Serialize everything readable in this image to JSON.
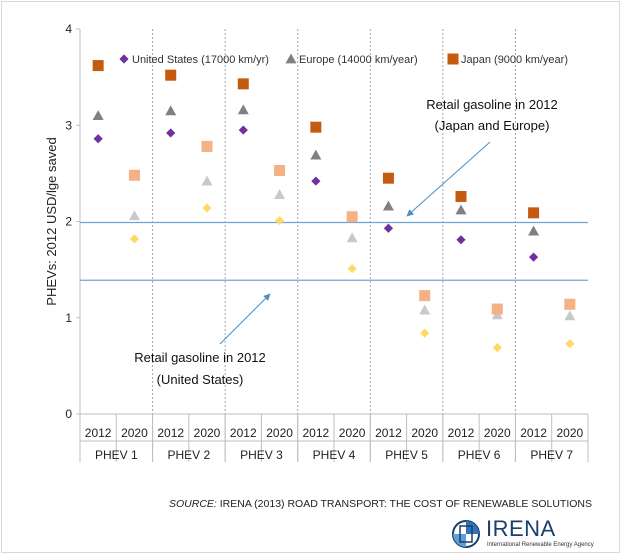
{
  "chart_data": {
    "type": "scatter",
    "ylabel": "PHEVs: 2012 USD/lge saved",
    "ylim": [
      0,
      4
    ],
    "yticks": [
      0,
      1,
      2,
      3,
      4
    ],
    "grid": false,
    "legend_position": "top",
    "groups": [
      "PHEV 1",
      "PHEV 2",
      "PHEV 3",
      "PHEV 4",
      "PHEV 5",
      "PHEV 6",
      "PHEV 7"
    ],
    "years": [
      "2012",
      "2020"
    ],
    "series": [
      {
        "name": "United States (17000 km/yr)",
        "marker": "diamond",
        "colors": {
          "2012": "#7030a0",
          "2020": "#ffd966"
        },
        "values_2012": [
          2.86,
          2.92,
          2.95,
          2.42,
          1.93,
          1.81,
          1.63
        ],
        "values_2020": [
          1.82,
          2.14,
          2.01,
          1.51,
          0.84,
          0.69,
          0.73
        ]
      },
      {
        "name": "Europe (14000 km/year)",
        "marker": "triangle",
        "colors": {
          "2012": "#808080",
          "2020": "#c9c9c9"
        },
        "values_2012": [
          3.1,
          3.15,
          3.16,
          2.69,
          2.16,
          2.12,
          1.9
        ],
        "values_2020": [
          2.06,
          2.42,
          2.28,
          1.83,
          1.08,
          1.03,
          1.02
        ]
      },
      {
        "name": "Japan (9000 km/year)",
        "marker": "square",
        "colors": {
          "2012": "#c55a11",
          "2020": "#f4b183"
        },
        "values_2012": [
          3.62,
          3.52,
          3.43,
          2.98,
          2.45,
          2.26,
          2.09
        ],
        "values_2020": [
          2.48,
          2.78,
          2.53,
          2.05,
          1.23,
          1.09,
          1.14
        ]
      }
    ],
    "reference_lines": [
      {
        "label_line1": "Retail gasoline in 2012",
        "label_line2": "(Japan and Europe)",
        "y": 1.99,
        "color": "#6ea5d8"
      },
      {
        "label_line1": "Retail gasoline in 2012",
        "label_line2": "(United States)",
        "y": 1.39,
        "color": "#6ea5d8"
      }
    ]
  },
  "footer": {
    "source_label": "SOURCE:",
    "source_text": " IRENA (2013) ROAD TRANSPORT: THE COST OF RENEWABLE SOLUTIONS"
  },
  "logo": {
    "name": "IRENA",
    "subtitle": "International Renewable Energy Agency"
  }
}
